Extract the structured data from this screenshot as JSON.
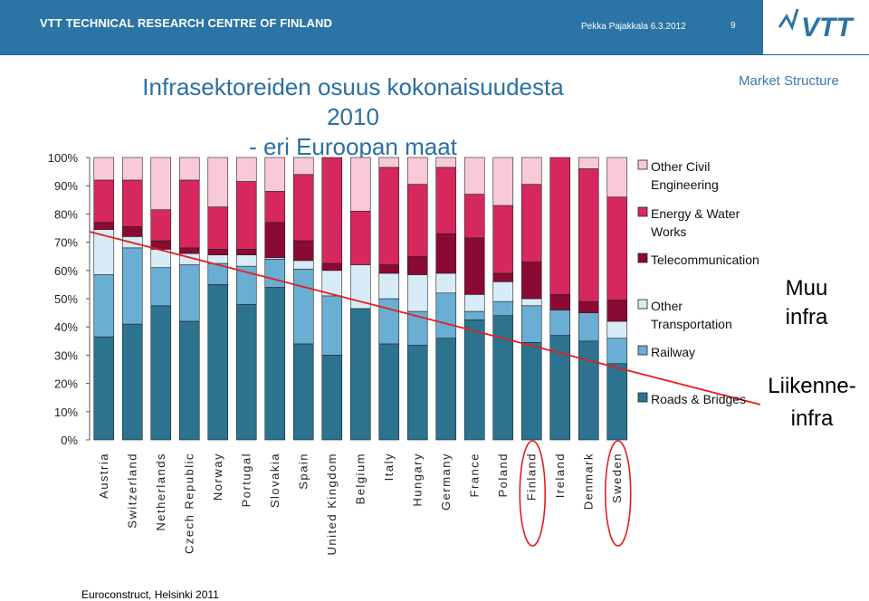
{
  "header": {
    "org": "VTT TECHNICAL RESEARCH CENTRE OF FINLAND",
    "author_date": "Pekka Pajakkala 6.3.2012",
    "page_number": "9",
    "logo_text": "VTT",
    "background_color": "#2b74a6"
  },
  "section_label": "Market Structure",
  "footer": "Euroconstruct, Helsinki 2011",
  "chart_data": {
    "type": "bar",
    "stacked": true,
    "title_lines": [
      "Infrasektoreiden osuus kokonaisuudesta 2010",
      "- eri Euroopan maat"
    ],
    "yticks": [
      "0%",
      "10%",
      "20%",
      "30%",
      "40%",
      "50%",
      "60%",
      "70%",
      "80%",
      "90%",
      "100%"
    ],
    "ylim": [
      0,
      100
    ],
    "categories": [
      "Austria",
      "Switzerland",
      "Netherlands",
      "Czech Republic",
      "Norway",
      "Portugal",
      "Slovakia",
      "Spain",
      "United Kingdom",
      "Belgium",
      "Italy",
      "Hungary",
      "Germany",
      "France",
      "Poland",
      "Finland",
      "Ireland",
      "Denmark",
      "Sweden"
    ],
    "series": [
      {
        "name": "Roads & Bridges",
        "color": "#2c7390",
        "values": [
          36.5,
          41,
          47.5,
          42,
          55,
          48,
          54,
          34,
          30,
          46.5,
          34,
          33.5,
          36,
          42.5,
          44,
          34.5,
          37,
          35,
          27
        ]
      },
      {
        "name": "Railway",
        "color": "#6aaed3",
        "values": [
          22,
          27,
          13.5,
          20,
          7.5,
          13.5,
          10,
          26.5,
          21,
          0,
          16,
          12,
          16,
          3,
          5,
          13,
          9,
          10,
          9
        ]
      },
      {
        "name": "Other Transportation",
        "color": "#d8ecf7",
        "values": [
          16,
          4,
          6.5,
          4,
          3,
          4,
          0.5,
          3,
          9,
          15.5,
          9,
          13,
          7,
          6,
          7,
          2.5,
          0,
          0,
          6
        ]
      },
      {
        "name": "Telecommunication",
        "color": "#8b0a33",
        "values": [
          2.5,
          3.5,
          3,
          2,
          2,
          2,
          12.5,
          7,
          2.5,
          0,
          3,
          6.5,
          14,
          20,
          3,
          13,
          5.5,
          4,
          7.5
        ]
      },
      {
        "name": "Energy & Water Works",
        "color": "#d6285d",
        "values": [
          15,
          16.5,
          11,
          24,
          15,
          24,
          11,
          23.5,
          37.5,
          19,
          34.5,
          25.5,
          23.5,
          15.5,
          24,
          27.5,
          48.5,
          47,
          36.5
        ]
      },
      {
        "name": "Other Civil Engineering",
        "color": "#f8cad8",
        "values": [
          8,
          8,
          18.5,
          8,
          17.5,
          8.5,
          12,
          6,
          0,
          19,
          3.5,
          9.5,
          3.5,
          13,
          17,
          9.5,
          0,
          4,
          14
        ]
      }
    ],
    "legend": [
      "Other Civil Engineering",
      "Energy & Water Works",
      "Telecommunication",
      "Other Transportation",
      "Railway",
      "Roads & Bridges"
    ],
    "legend_position": "right",
    "annotations": {
      "upper_group": "Muu infra",
      "lower_group": "Liikenne-infra",
      "circled_categories": [
        "Finland",
        "Sweden"
      ],
      "trend_line_color": "#e02020"
    }
  }
}
